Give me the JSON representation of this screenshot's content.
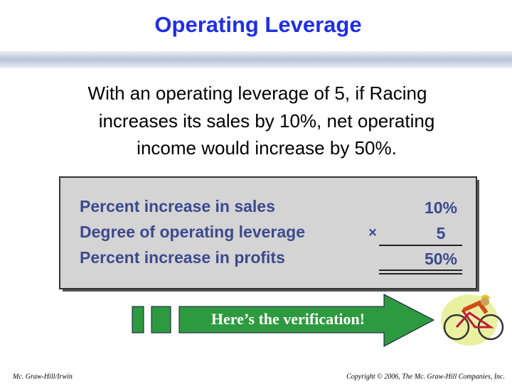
{
  "header": {
    "title": "Operating Leverage"
  },
  "body": {
    "lines": [
      "With an operating leverage of 5, if Racing",
      "increases its sales by 10%,  net operating",
      "income would increase by 50%."
    ]
  },
  "table": {
    "rows": [
      [
        "Percent increase in sales",
        "",
        "10%"
      ],
      [
        "Degree of operating leverage",
        "×",
        "5"
      ],
      [
        "Percent increase in profits",
        "",
        "50%"
      ]
    ]
  },
  "arrow": {
    "label": "Here’s the verification!"
  },
  "footer": {
    "left": "Mc. Graw-Hill/Irwin",
    "right": "Copyright © 2006, The Mc. Graw-Hill Companies, Inc."
  }
}
